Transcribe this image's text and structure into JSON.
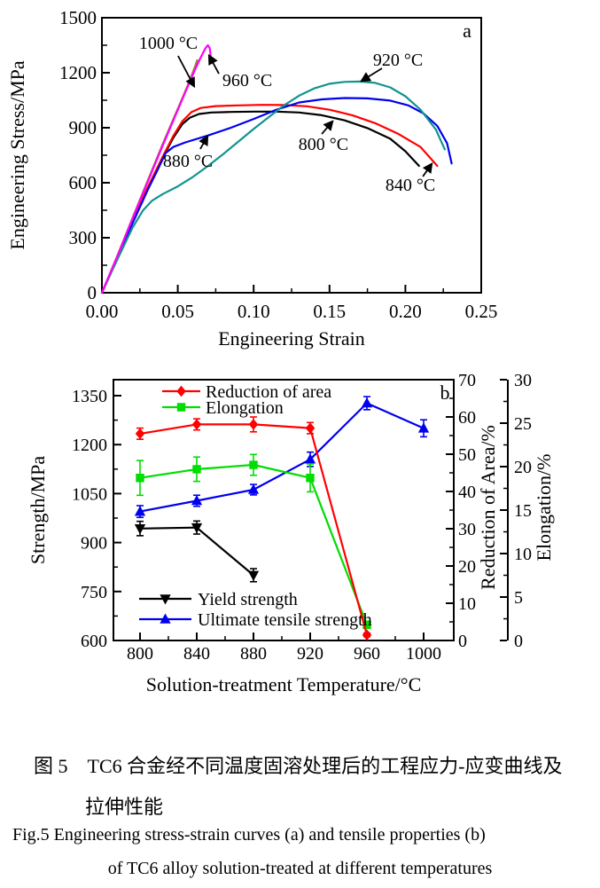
{
  "figure": {
    "caption_zh_1": "图 5　TC6 合金经不同温度固溶处理后的工程应力-应变曲线及",
    "caption_zh_2": "拉伸性能",
    "caption_en_1": "Fig.5   Engineering stress-strain curves (a) and tensile properties (b)",
    "caption_en_2": "of TC6 alloy solution-treated at different temperatures"
  },
  "chart_data": [
    {
      "id": "a",
      "type": "line",
      "panel_label": "a",
      "title": "Engineering stress-strain curves of TC6 alloy solution-treated at different temperatures",
      "xlabel": "Engineering Strain",
      "ylabel": "Engineering Stress/MPa",
      "xlim": [
        0,
        0.25
      ],
      "ylim": [
        0,
        1500
      ],
      "xticks": [
        0,
        0.05,
        0.1,
        0.15,
        0.2,
        0.25
      ],
      "xtick_labels": [
        "0.00",
        "0.05",
        "0.10",
        "0.15",
        "0.20",
        "0.25"
      ],
      "xticks_minor": [
        0.025,
        0.075,
        0.125,
        0.175,
        0.225
      ],
      "yticks": [
        0,
        300,
        600,
        900,
        1200,
        1500
      ],
      "yticks_minor": [
        150,
        450,
        750,
        1050,
        1350
      ],
      "grid": false,
      "series": [
        {
          "name": "800 °C",
          "color": "#000000",
          "points": [
            [
              0,
              0
            ],
            [
              0.005,
              95
            ],
            [
              0.01,
              190
            ],
            [
              0.02,
              380
            ],
            [
              0.03,
              565
            ],
            [
              0.04,
              735
            ],
            [
              0.047,
              845
            ],
            [
              0.053,
              920
            ],
            [
              0.058,
              955
            ],
            [
              0.064,
              975
            ],
            [
              0.072,
              983
            ],
            [
              0.085,
              986
            ],
            [
              0.1,
              988
            ],
            [
              0.115,
              988
            ],
            [
              0.13,
              983
            ],
            [
              0.145,
              968
            ],
            [
              0.16,
              940
            ],
            [
              0.175,
              898
            ],
            [
              0.19,
              840
            ],
            [
              0.2,
              772
            ],
            [
              0.209,
              692
            ]
          ]
        },
        {
          "name": "840 °C",
          "color": "#ff0000",
          "points": [
            [
              0,
              0
            ],
            [
              0.01,
              192
            ],
            [
              0.02,
              385
            ],
            [
              0.03,
              572
            ],
            [
              0.04,
              742
            ],
            [
              0.047,
              855
            ],
            [
              0.053,
              935
            ],
            [
              0.059,
              985
            ],
            [
              0.065,
              1008
            ],
            [
              0.075,
              1018
            ],
            [
              0.09,
              1022
            ],
            [
              0.105,
              1025
            ],
            [
              0.12,
              1024
            ],
            [
              0.135,
              1017
            ],
            [
              0.15,
              998
            ],
            [
              0.165,
              968
            ],
            [
              0.18,
              925
            ],
            [
              0.195,
              868
            ],
            [
              0.21,
              795
            ],
            [
              0.221,
              692
            ]
          ]
        },
        {
          "name": "880 °C",
          "color": "#0000ee",
          "points": [
            [
              0,
              0
            ],
            [
              0.01,
              188
            ],
            [
              0.02,
              375
            ],
            [
              0.03,
              558
            ],
            [
              0.037,
              675
            ],
            [
              0.042,
              762
            ],
            [
              0.047,
              795
            ],
            [
              0.055,
              820
            ],
            [
              0.07,
              858
            ],
            [
              0.085,
              900
            ],
            [
              0.1,
              948
            ],
            [
              0.115,
              998
            ],
            [
              0.13,
              1038
            ],
            [
              0.145,
              1055
            ],
            [
              0.16,
              1062
            ],
            [
              0.175,
              1060
            ],
            [
              0.19,
              1048
            ],
            [
              0.202,
              1022
            ],
            [
              0.212,
              978
            ],
            [
              0.221,
              910
            ],
            [
              0.2275,
              815
            ],
            [
              0.2305,
              705
            ]
          ]
        },
        {
          "name": "920 °C",
          "color": "#12948e",
          "points": [
            [
              0,
              0
            ],
            [
              0.01,
              178
            ],
            [
              0.02,
              352
            ],
            [
              0.027,
              448
            ],
            [
              0.033,
              502
            ],
            [
              0.04,
              538
            ],
            [
              0.05,
              580
            ],
            [
              0.06,
              632
            ],
            [
              0.07,
              692
            ],
            [
              0.08,
              757
            ],
            [
              0.09,
              825
            ],
            [
              0.1,
              893
            ],
            [
              0.11,
              958
            ],
            [
              0.12,
              1022
            ],
            [
              0.13,
              1075
            ],
            [
              0.14,
              1115
            ],
            [
              0.15,
              1140
            ],
            [
              0.16,
              1150
            ],
            [
              0.17,
              1152
            ],
            [
              0.18,
              1145
            ],
            [
              0.19,
              1120
            ],
            [
              0.2,
              1072
            ],
            [
              0.21,
              998
            ],
            [
              0.22,
              892
            ],
            [
              0.226,
              782
            ]
          ]
        },
        {
          "name": "1000 °C",
          "color": "#8d8d1b",
          "points": [
            [
              0,
              0
            ],
            [
              0.01,
              198
            ],
            [
              0.02,
              404
            ],
            [
              0.03,
              608
            ],
            [
              0.04,
              810
            ],
            [
              0.048,
              965
            ],
            [
              0.054,
              1080
            ],
            [
              0.058,
              1160
            ],
            [
              0.061,
              1225
            ],
            [
              0.0628,
              1268
            ]
          ]
        },
        {
          "name": "960 °C",
          "color": "#ff00ff",
          "points": [
            [
              0,
              0
            ],
            [
              0.01,
              196
            ],
            [
              0.02,
              400
            ],
            [
              0.03,
              602
            ],
            [
              0.04,
              802
            ],
            [
              0.048,
              958
            ],
            [
              0.055,
              1095
            ],
            [
              0.061,
              1210
            ],
            [
              0.065,
              1282
            ],
            [
              0.068,
              1330
            ],
            [
              0.0698,
              1350
            ],
            [
              0.071,
              1335
            ],
            [
              0.0717,
              1288
            ]
          ]
        }
      ],
      "annotations": [
        {
          "text": "1000 °C",
          "tx": 0.0438,
          "ty": 1365,
          "ax": 0.0502,
          "ay": 1292,
          "bx": 0.0607,
          "by": 1127
        },
        {
          "text": "960 °C",
          "tx": 0.0958,
          "ty": 1161,
          "ax": 0.0771,
          "ay": 1195,
          "bx": 0.0707,
          "by": 1292
        },
        {
          "text": "920 °C",
          "tx": 0.1951,
          "ty": 1272,
          "ax": 0.1846,
          "ay": 1224,
          "bx": 0.1712,
          "by": 1156
        },
        {
          "text": "800 °C",
          "tx": 0.146,
          "ty": 813,
          "ax": 0.1449,
          "ay": 866,
          "bx": 0.1519,
          "by": 934
        },
        {
          "text": "840 °C",
          "tx": 0.2033,
          "ty": 590,
          "ax": 0.2115,
          "ay": 634,
          "bx": 0.2173,
          "by": 702
        },
        {
          "text": "880 °C",
          "tx": 0.0567,
          "ty": 721,
          "ax": 0.0648,
          "ay": 784,
          "bx": 0.0695,
          "by": 852
        }
      ]
    },
    {
      "id": "b",
      "type": "line",
      "panel_label": "b",
      "title": "Tensile properties of TC6 alloy solution-treated at different temperatures",
      "xlabel": "Solution-treatment Temperature/°C",
      "ylabel_left": "Strength/MPa",
      "ylabel_right1": "Reduction of Area/%",
      "ylabel_right2": "Elongation/%",
      "x_categories": [
        800,
        840,
        880,
        920,
        960,
        1000
      ],
      "xticks_minor": [
        820,
        860,
        900,
        940,
        980
      ],
      "left_ylim": [
        600,
        1400
      ],
      "left_yticks": [
        600,
        750,
        900,
        1050,
        1200,
        1350
      ],
      "left_yticks_minor": [
        675,
        825,
        975,
        1125,
        1275
      ],
      "ra_ylim": [
        0,
        70
      ],
      "ra_yticks": [
        0,
        10,
        20,
        30,
        40,
        50,
        60,
        70
      ],
      "ra_yticks_minor": [
        5,
        15,
        25,
        35,
        45,
        55,
        65
      ],
      "el_ylim": [
        0,
        30
      ],
      "el_yticks": [
        0,
        5,
        10,
        15,
        20,
        25,
        30
      ],
      "el_yticks_minor": [
        2.5,
        7.5,
        12.5,
        17.5,
        22.5,
        27.5
      ],
      "grid": false,
      "series": [
        {
          "name": "Yield strength",
          "axis": "left",
          "color": "#000000",
          "marker": "triangle-down",
          "x": [
            800,
            840,
            880
          ],
          "y": [
            943,
            946,
            800
          ],
          "yerr": [
            22,
            20,
            20
          ]
        },
        {
          "name": "Ultimate tensile strength",
          "axis": "left",
          "color": "#0000ee",
          "marker": "triangle-up",
          "x": [
            800,
            840,
            880,
            920,
            960,
            1000
          ],
          "y": [
            995,
            1028,
            1062,
            1155,
            1327,
            1250
          ],
          "yerr": [
            18,
            17,
            16,
            22,
            20,
            26
          ]
        },
        {
          "name": "Elongation",
          "axis": "el",
          "color": "#00dd00",
          "marker": "square",
          "x": [
            800,
            840,
            880,
            920,
            960
          ],
          "y": [
            18.7,
            19.7,
            20.2,
            18.7,
            1.8
          ],
          "yerr": [
            2.0,
            1.4,
            1.2,
            1.6,
            0.4
          ]
        },
        {
          "name": "Reduction of area",
          "axis": "ra",
          "color": "#ff0000",
          "marker": "diamond",
          "x": [
            800,
            840,
            880,
            920,
            960
          ],
          "y": [
            55.5,
            58,
            58,
            57,
            1.5
          ],
          "yerr": [
            1.5,
            1.5,
            2.0,
            1.5,
            0.5
          ]
        }
      ],
      "legend_top": {
        "series": [
          3,
          2
        ],
        "rows_y": [
          31,
          49
        ],
        "x_line": [
          183,
          226
        ],
        "x_text": 232
      },
      "legend_bottom": {
        "series": [
          0,
          1
        ],
        "rows_y": [
          265,
          288
        ],
        "x_line": [
          157,
          216
        ],
        "x_text": 223
      }
    }
  ]
}
